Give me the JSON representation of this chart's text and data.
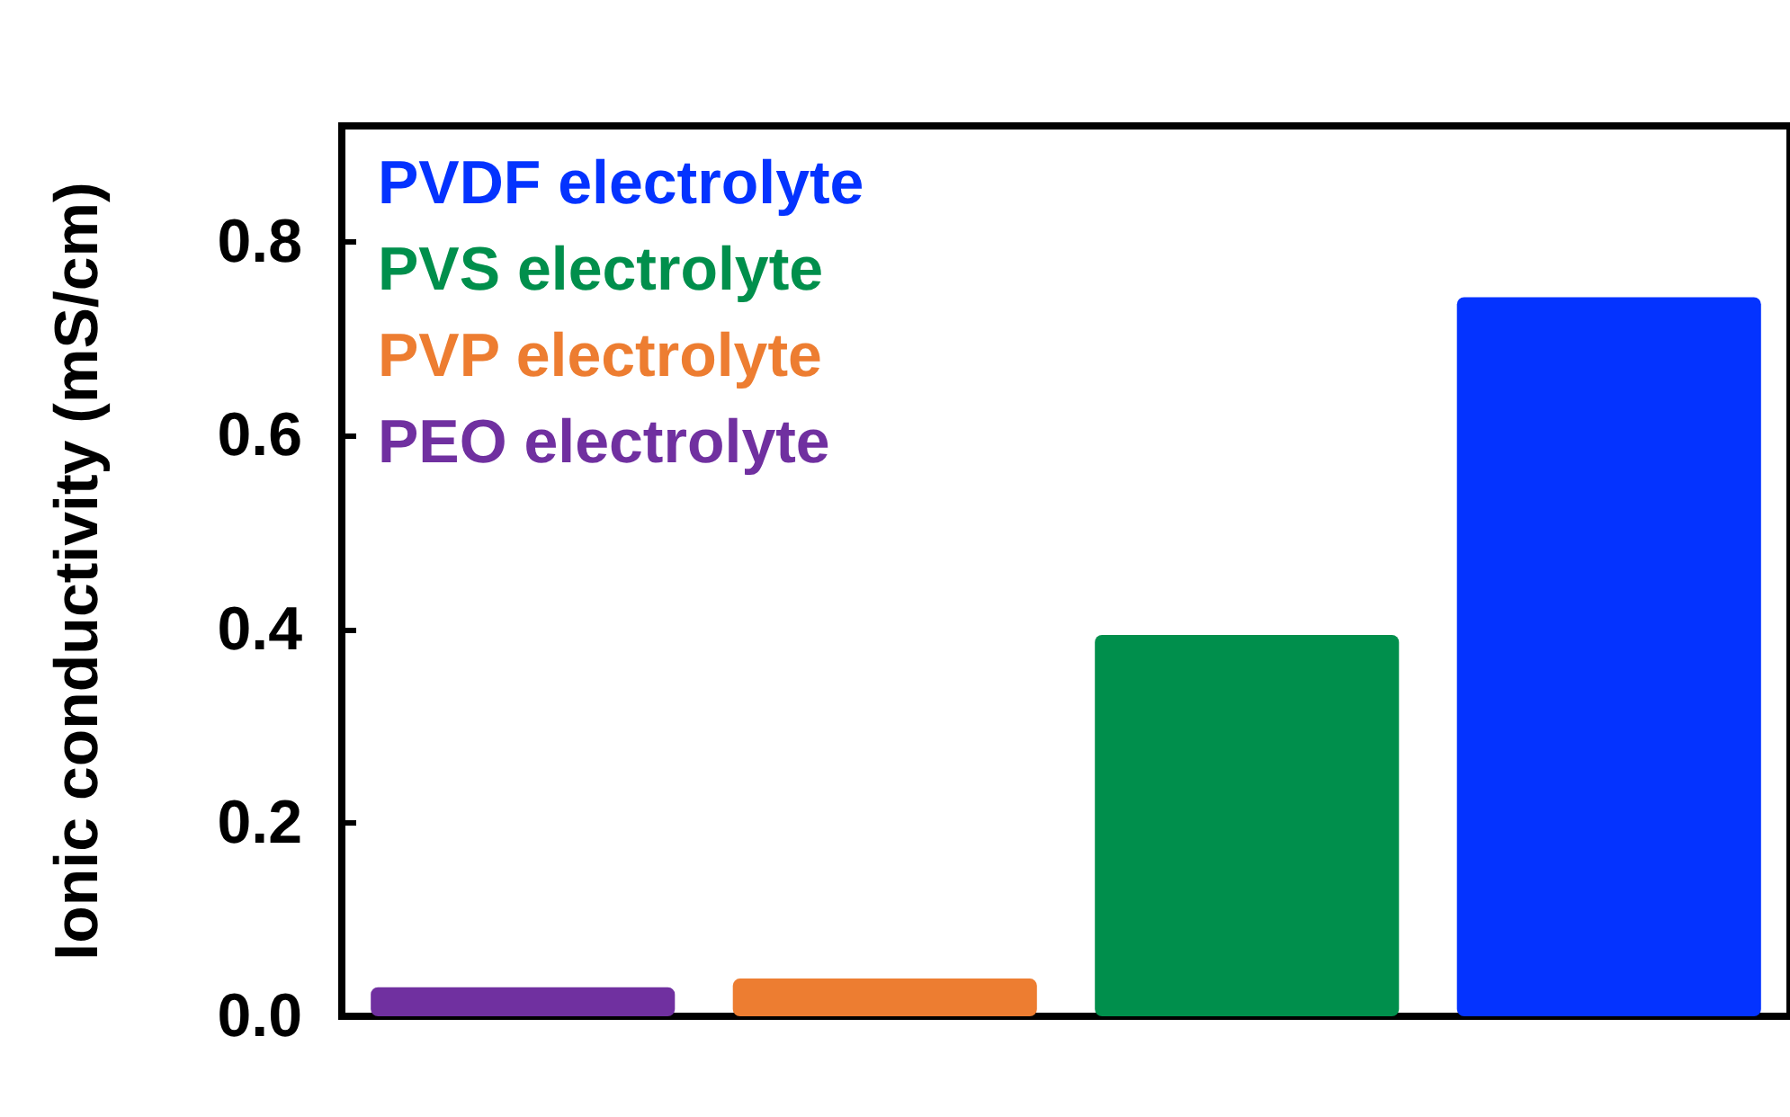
{
  "chart_data": {
    "type": "bar",
    "ylabel": "Ionic conductivity (mS/cm)",
    "categories": [
      null,
      null,
      null,
      null
    ],
    "series": [
      {
        "name": "PVDF electrolyte",
        "color": "#0433ff",
        "values": [
          null,
          null,
          null,
          0.743
        ]
      },
      {
        "name": "PVS electrolyte",
        "color": "#008f4c",
        "values": [
          null,
          null,
          0.394,
          null
        ]
      },
      {
        "name": "PVP electrolyte",
        "color": "#ed7d31",
        "values": [
          null,
          0.039,
          null,
          null
        ]
      },
      {
        "name": "PEO electrolyte",
        "color": "#7030a0",
        "values": [
          0.03,
          null,
          null,
          null
        ]
      }
    ],
    "ylim": [
      0,
      0.92
    ],
    "yticks": [
      {
        "value": 0,
        "label": "0.0"
      },
      {
        "value": 0.2,
        "label": "0.2"
      },
      {
        "value": 0.4,
        "label": "0.4"
      },
      {
        "value": 0.6,
        "label": "0.6"
      },
      {
        "value": 0.8,
        "label": "0.8"
      }
    ],
    "grid": false,
    "stacked": true,
    "legend": "top left"
  }
}
